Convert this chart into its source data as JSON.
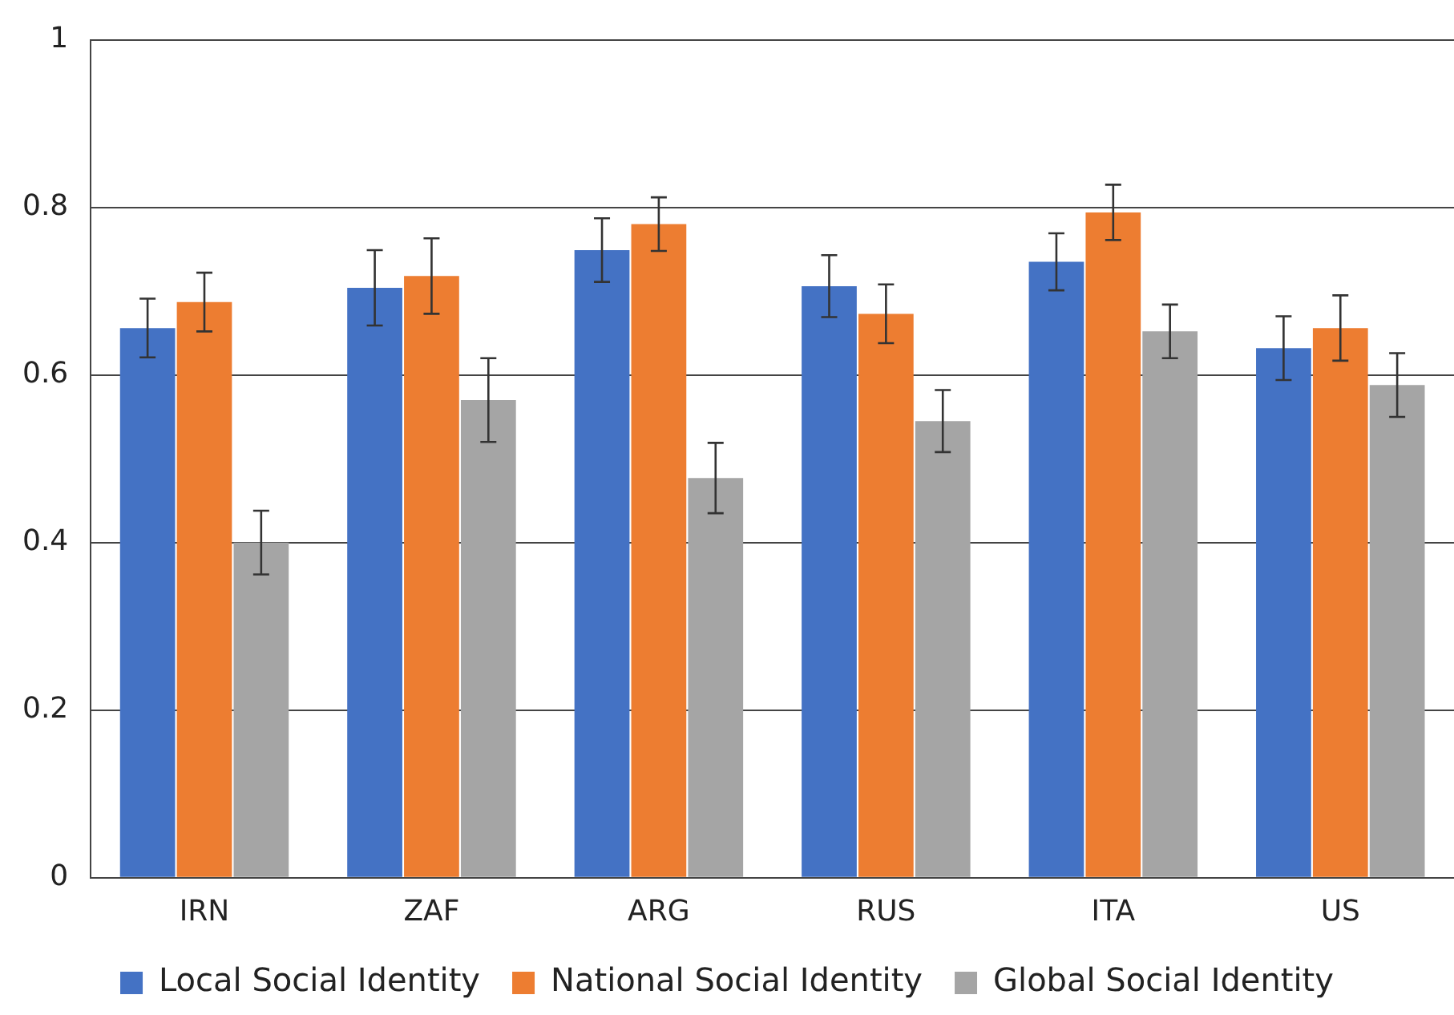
{
  "chart_data": {
    "type": "bar",
    "categories": [
      "IRN",
      "ZAF",
      "ARG",
      "RUS",
      "ITA",
      "US"
    ],
    "series": [
      {
        "name": "Local Social Identity",
        "color": "#4472c4",
        "values": [
          0.656,
          0.704,
          0.749,
          0.706,
          0.735,
          0.632
        ],
        "errors": [
          0.035,
          0.045,
          0.038,
          0.037,
          0.034,
          0.038
        ]
      },
      {
        "name": "National Social Identity",
        "color": "#ed7d31",
        "values": [
          0.687,
          0.718,
          0.78,
          0.673,
          0.794,
          0.656
        ],
        "errors": [
          0.035,
          0.045,
          0.032,
          0.035,
          0.033,
          0.039
        ]
      },
      {
        "name": "Global Social Identity",
        "color": "#a5a5a5",
        "values": [
          0.4,
          0.57,
          0.477,
          0.545,
          0.652,
          0.588
        ],
        "errors": [
          0.038,
          0.05,
          0.042,
          0.037,
          0.032,
          0.038
        ]
      }
    ],
    "ylim": [
      0,
      1
    ],
    "yticks": [
      0,
      0.2,
      0.4,
      0.6,
      0.8,
      1
    ],
    "grid": "y",
    "legend": "bottom"
  }
}
